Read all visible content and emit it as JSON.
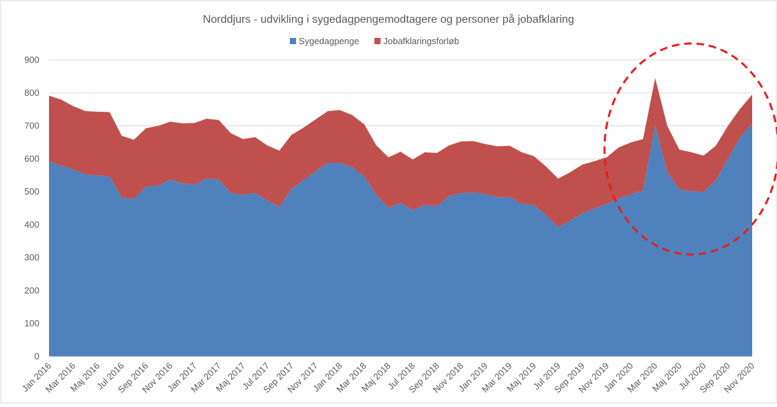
{
  "chart_data": {
    "type": "stacked_area",
    "title": "Norddjurs - udvikling i sygedagpengemodtagere og personer på jobafklaring",
    "categories": [
      "Jan 2016",
      null,
      "Mar 2016",
      null,
      "Maj 2016",
      null,
      "Jul 2016",
      null,
      "Sep 2016",
      null,
      "Nov 2016",
      null,
      "Jan 2017",
      null,
      "Mar 2017",
      null,
      "Maj 2017",
      null,
      "Jul 2017",
      null,
      "Sep 2017",
      null,
      "Nov 2017",
      null,
      "Jan 2018",
      null,
      "Mar 2018",
      null,
      "Maj 2018",
      null,
      "Jul 2018",
      null,
      "Sep 2018",
      null,
      "Nov 2018",
      null,
      "Jan 2019",
      null,
      "Mar 2019",
      null,
      "Maj 2019",
      null,
      "Jul 2019",
      null,
      "Sep 2019",
      null,
      "Nov 2019",
      null,
      "Jan 2020",
      null,
      "Mar 2020",
      null,
      "Maj 2020",
      null,
      "Jul 2020",
      null,
      "Sep 2020",
      null,
      "Nov 2020"
    ],
    "series": [
      {
        "name": "Sygedagpenge",
        "color": "#4f81bd",
        "values": [
          592,
          580,
          568,
          553,
          550,
          547,
          483,
          478,
          516,
          519,
          537,
          526,
          522,
          541,
          537,
          497,
          491,
          497,
          474,
          454,
          509,
          535,
          563,
          588,
          588,
          575,
          547,
          490,
          452,
          466,
          445,
          460,
          456,
          488,
          496,
          498,
          494,
          484,
          484,
          464,
          460,
          430,
          393,
          413,
          436,
          450,
          463,
          480,
          492,
          505,
          703,
          560,
          507,
          502,
          500,
          535,
          600,
          665,
          707
        ]
      },
      {
        "name": "Jobafklaringsforløb",
        "color": "#c0504d",
        "values": [
          200,
          200,
          192,
          192,
          193,
          195,
          187,
          180,
          177,
          181,
          176,
          182,
          187,
          181,
          181,
          181,
          169,
          169,
          167,
          171,
          164,
          160,
          157,
          157,
          160,
          158,
          158,
          151,
          153,
          156,
          153,
          160,
          162,
          153,
          157,
          156,
          151,
          154,
          156,
          156,
          148,
          147,
          147,
          147,
          147,
          143,
          142,
          155,
          158,
          155,
          142,
          140,
          121,
          118,
          110,
          105,
          100,
          87,
          88
        ]
      }
    ],
    "ylim": [
      0,
      900
    ],
    "yticks": [
      0,
      100,
      200,
      300,
      400,
      500,
      600,
      700,
      800,
      900
    ],
    "grid": true,
    "legend": "top"
  }
}
